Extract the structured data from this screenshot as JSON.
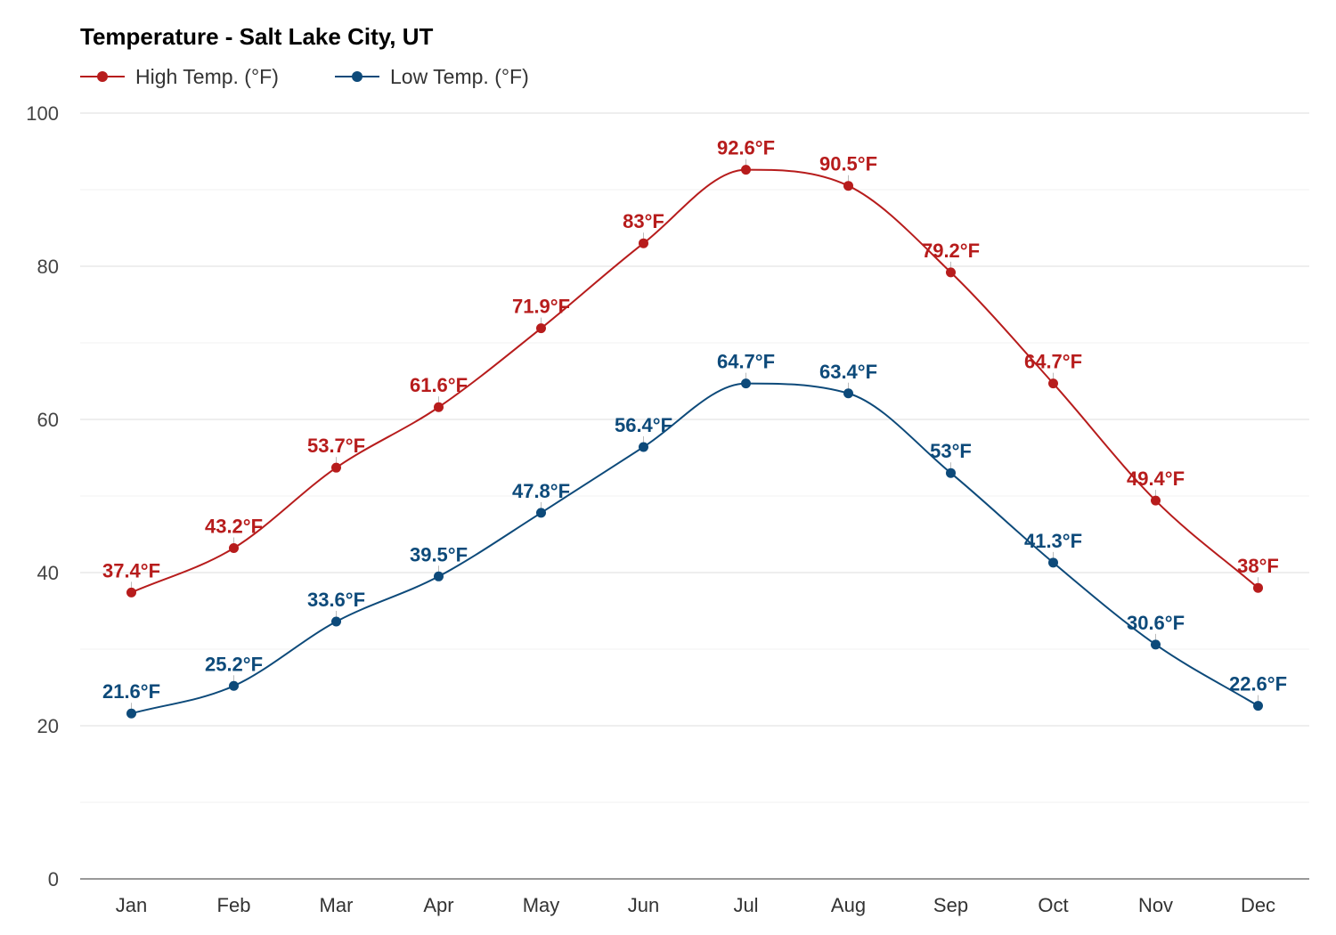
{
  "chart_data": {
    "type": "line",
    "title": "Temperature - Salt Lake City, UT",
    "categories": [
      "Jan",
      "Feb",
      "Mar",
      "Apr",
      "May",
      "Jun",
      "Jul",
      "Aug",
      "Sep",
      "Oct",
      "Nov",
      "Dec"
    ],
    "ylim": [
      0,
      100
    ],
    "yticks": [
      0,
      20,
      40,
      60,
      80,
      100
    ],
    "grid": true,
    "legend_position": "top-left",
    "series": [
      {
        "name": "High Temp. (°F)",
        "color": "#b71c1c",
        "values": [
          37.4,
          43.2,
          53.7,
          61.6,
          71.9,
          83,
          92.6,
          90.5,
          79.2,
          64.7,
          49.4,
          38
        ],
        "labels": [
          "37.4°F",
          "43.2°F",
          "53.7°F",
          "61.6°F",
          "71.9°F",
          "83°F",
          "92.6°F",
          "90.5°F",
          "79.2°F",
          "64.7°F",
          "49.4°F",
          "38°F"
        ]
      },
      {
        "name": "Low Temp. (°F)",
        "color": "#0d4a7a",
        "values": [
          21.6,
          25.2,
          33.6,
          39.5,
          47.8,
          56.4,
          64.7,
          63.4,
          53,
          41.3,
          30.6,
          22.6
        ],
        "labels": [
          "21.6°F",
          "25.2°F",
          "33.6°F",
          "39.5°F",
          "47.8°F",
          "56.4°F",
          "64.7°F",
          "63.4°F",
          "53°F",
          "41.3°F",
          "30.6°F",
          "22.6°F"
        ]
      }
    ]
  }
}
